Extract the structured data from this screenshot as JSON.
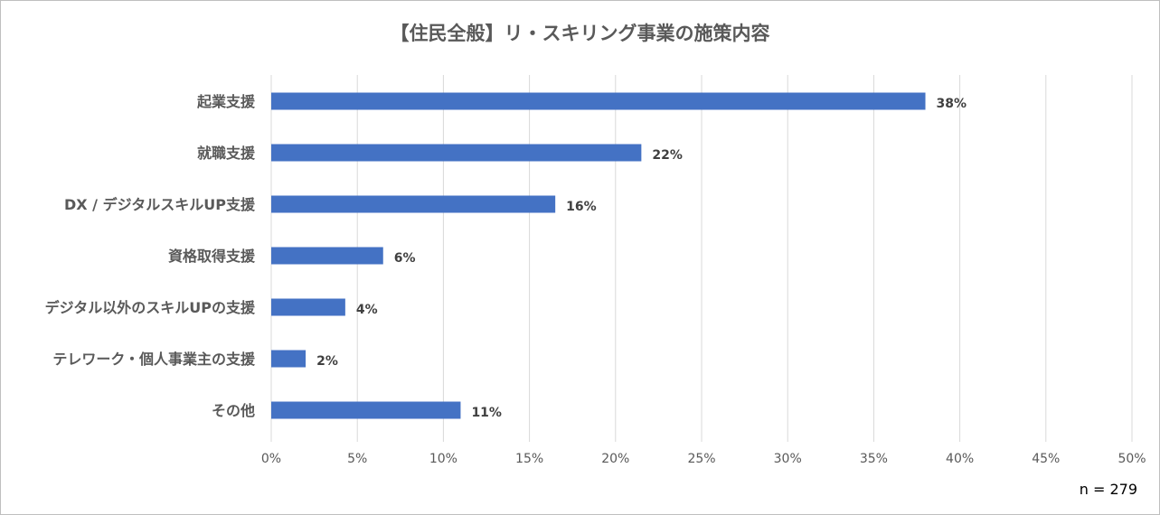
{
  "title": "【住民全般】リ・スキリング事業の施策内容",
  "footnote": "n = 279",
  "chart_data": {
    "type": "bar",
    "orientation": "horizontal",
    "title": "【住民全般】リ・スキリング事業の施策内容",
    "categories": [
      "起業支援",
      "就職支援",
      "DX / デジタルスキルUP支援",
      "資格取得支援",
      "デジタル以外のスキルUPの支援",
      "テレワーク・個人事業主の支援",
      "その他"
    ],
    "values": [
      38,
      22,
      16,
      6,
      4,
      2,
      11
    ],
    "plotted_values": [
      38.0,
      21.5,
      16.5,
      6.5,
      4.3,
      2.0,
      11.0
    ],
    "data_labels": [
      "38%",
      "22%",
      "16%",
      "6%",
      "4%",
      "2%",
      "11%"
    ],
    "xlim": [
      0,
      50
    ],
    "xticks": [
      "0%",
      "5%",
      "10%",
      "15%",
      "20%",
      "25%",
      "30%",
      "35%",
      "40%",
      "45%",
      "50%"
    ],
    "xlabel": "",
    "ylabel": "",
    "grid": "vertical",
    "legend": "none",
    "bar_color": "#4472c4",
    "grid_color": "#d9d9d9"
  }
}
